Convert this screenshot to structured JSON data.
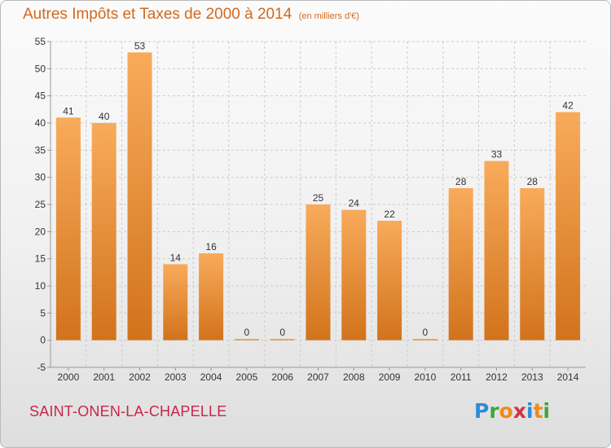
{
  "header": {
    "title": "Autres Impôts et Taxes de 2000 à 2014",
    "unit": "(en milliers d'€)"
  },
  "footer": {
    "town": "SAINT-ONEN-LA-CHAPELLE",
    "logo_letters": [
      "P",
      "r",
      "o",
      "x",
      "i",
      "t",
      "i"
    ],
    "logo_colors": [
      "#2e8bd6",
      "#39a939",
      "#f08a1c",
      "#d62f48",
      "#2e8bd6",
      "#f08a1c",
      "#39a939"
    ]
  },
  "colors": {
    "bar_light": "#f8ab5b",
    "bar_dark": "#d2731c",
    "title": "#d2691e",
    "town": "#c8264d",
    "text": "#333333",
    "grid": "#cccccc",
    "axis": "#999999"
  },
  "chart_data": {
    "type": "bar",
    "categories": [
      "2000",
      "2001",
      "2002",
      "2003",
      "2004",
      "2005",
      "2006",
      "2007",
      "2008",
      "2009",
      "2010",
      "2011",
      "2012",
      "2013",
      "2014"
    ],
    "values": [
      41,
      40,
      53,
      14,
      16,
      0,
      0,
      25,
      24,
      22,
      0,
      28,
      33,
      28,
      42
    ],
    "value_labels": [
      "41",
      "40",
      "53",
      "14",
      "16",
      "0",
      "0",
      "25",
      "24",
      "22",
      "0",
      "28",
      "33",
      "28",
      "42"
    ],
    "yticks": [
      -5,
      0,
      5,
      10,
      15,
      20,
      25,
      30,
      35,
      40,
      45,
      50,
      55
    ],
    "ylim": [
      -5,
      55
    ],
    "grid": true,
    "legend": "none"
  }
}
